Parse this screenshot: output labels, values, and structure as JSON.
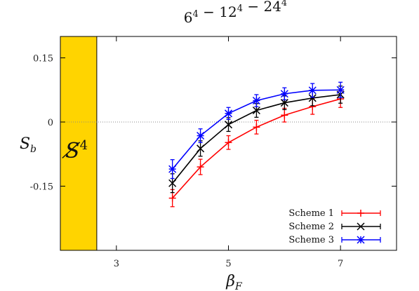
{
  "chart_data": {
    "type": "line",
    "title": "6⁴ − 12⁴ − 24⁴",
    "xlabel": "β_F",
    "ylabel": "S_b",
    "xlim": [
      2.0,
      8.0
    ],
    "ylim": [
      -0.3,
      0.2
    ],
    "x_ticks": [
      3,
      5,
      7
    ],
    "y_ticks": [
      0.15,
      0,
      -0.15
    ],
    "y_tick_labels": [
      "0.15",
      "0",
      "-0.15"
    ],
    "x_tick_labels": [
      "3",
      "5",
      "7"
    ],
    "zero_line": true,
    "shaded_region": {
      "x_range": [
        2.0,
        2.65
      ],
      "color": "#FFD400",
      "label": "S̸⁴"
    },
    "legend_position": "bottom-right",
    "x": [
      4.0,
      4.5,
      5.0,
      5.5,
      6.0,
      6.5,
      7.0
    ],
    "series": [
      {
        "name": "Scheme 1",
        "color": "#ff0000",
        "marker": "plus",
        "values": [
          -0.178,
          -0.105,
          -0.048,
          -0.012,
          0.016,
          0.036,
          0.054
        ],
        "errors": [
          0.02,
          0.018,
          0.016,
          0.016,
          0.016,
          0.018,
          0.02
        ]
      },
      {
        "name": "Scheme 2",
        "color": "#000000",
        "marker": "cross",
        "values": [
          -0.143,
          -0.062,
          -0.006,
          0.027,
          0.045,
          0.056,
          0.064
        ],
        "errors": [
          0.022,
          0.018,
          0.016,
          0.016,
          0.016,
          0.018,
          0.02
        ]
      },
      {
        "name": "Scheme 3",
        "color": "#0000ff",
        "marker": "star",
        "values": [
          -0.11,
          -0.032,
          0.02,
          0.05,
          0.066,
          0.074,
          0.075
        ],
        "errors": [
          0.022,
          0.016,
          0.014,
          0.014,
          0.014,
          0.016,
          0.018
        ]
      }
    ]
  }
}
